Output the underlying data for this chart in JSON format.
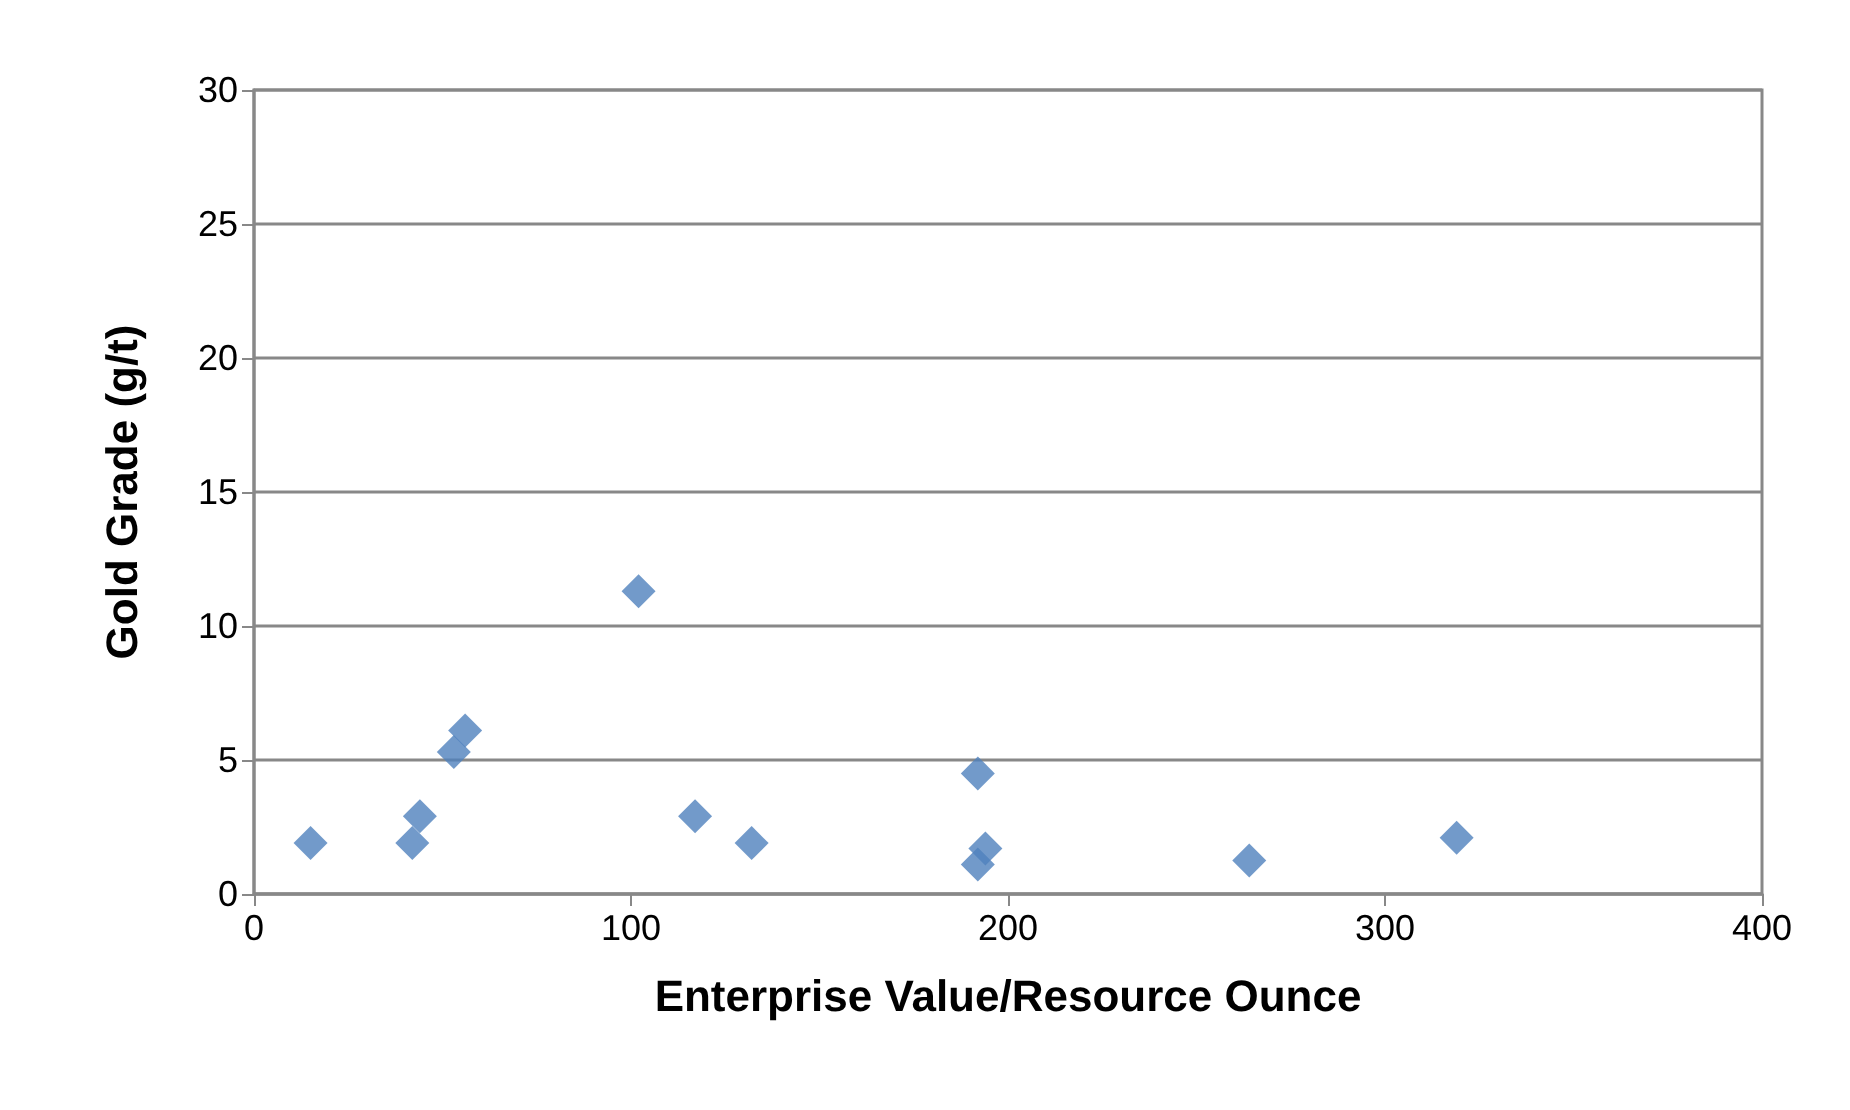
{
  "chart_data": {
    "type": "scatter",
    "xlabel": "Enterprise Value/Resource Ounce",
    "ylabel": "Gold Grade (g/t)",
    "x": [
      15,
      42,
      44,
      53,
      56,
      102,
      117,
      132,
      192,
      192,
      194,
      264,
      319
    ],
    "series": [
      {
        "color": "#4f81bd",
        "values": [
          1.9,
          1.9,
          2.9,
          5.3,
          6.1,
          11.3,
          2.9,
          1.9,
          4.5,
          1.1,
          1.7,
          1.25,
          2.1
        ]
      }
    ],
    "xlim": [
      0,
      400
    ],
    "xticks": [
      0,
      100,
      200,
      300,
      400
    ],
    "ylim": [
      0,
      30
    ],
    "yticks": [
      0,
      5,
      10,
      15,
      20,
      25,
      30
    ],
    "grid": "y",
    "marker": "diamond"
  }
}
